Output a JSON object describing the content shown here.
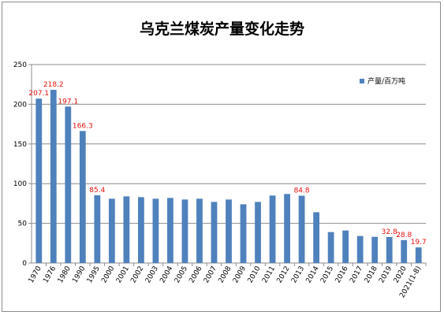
{
  "chart_data": {
    "type": "bar",
    "title": "乌克兰煤炭产量变化走势",
    "xlabel": "",
    "ylabel": "",
    "ylim": [
      0,
      250
    ],
    "yticks": [
      0,
      50,
      100,
      150,
      200,
      250
    ],
    "grid": true,
    "legend_position": "right",
    "categories": [
      "1970",
      "1976",
      "1980",
      "1990",
      "1995",
      "2000",
      "2001",
      "2002",
      "2003",
      "2004",
      "2005",
      "2006",
      "2007",
      "2008",
      "2009",
      "2010",
      "2011",
      "2012",
      "2013",
      "2014",
      "2015",
      "2016",
      "2017",
      "2018",
      "2019",
      "2020",
      "2021(1-8)"
    ],
    "series": [
      {
        "name": "产量/百万吨",
        "color": "#4f81bd",
        "values": [
          207.1,
          218.2,
          197.1,
          166.3,
          85.4,
          81,
          84,
          83,
          81,
          82,
          80,
          81,
          77,
          80,
          74,
          77,
          85,
          87,
          84.8,
          64,
          39,
          41,
          34,
          33,
          32.8,
          28.8,
          19.7
        ]
      }
    ],
    "data_labels": [
      {
        "index": 0,
        "text": "207.1"
      },
      {
        "index": 1,
        "text": "218.2"
      },
      {
        "index": 2,
        "text": "197.1"
      },
      {
        "index": 3,
        "text": "166.3"
      },
      {
        "index": 4,
        "text": "85.4"
      },
      {
        "index": 18,
        "text": "84.8"
      },
      {
        "index": 24,
        "text": "32.8"
      },
      {
        "index": 25,
        "text": "28.8"
      },
      {
        "index": 26,
        "text": "19.7"
      }
    ],
    "data_label_color": "#e3120b"
  }
}
